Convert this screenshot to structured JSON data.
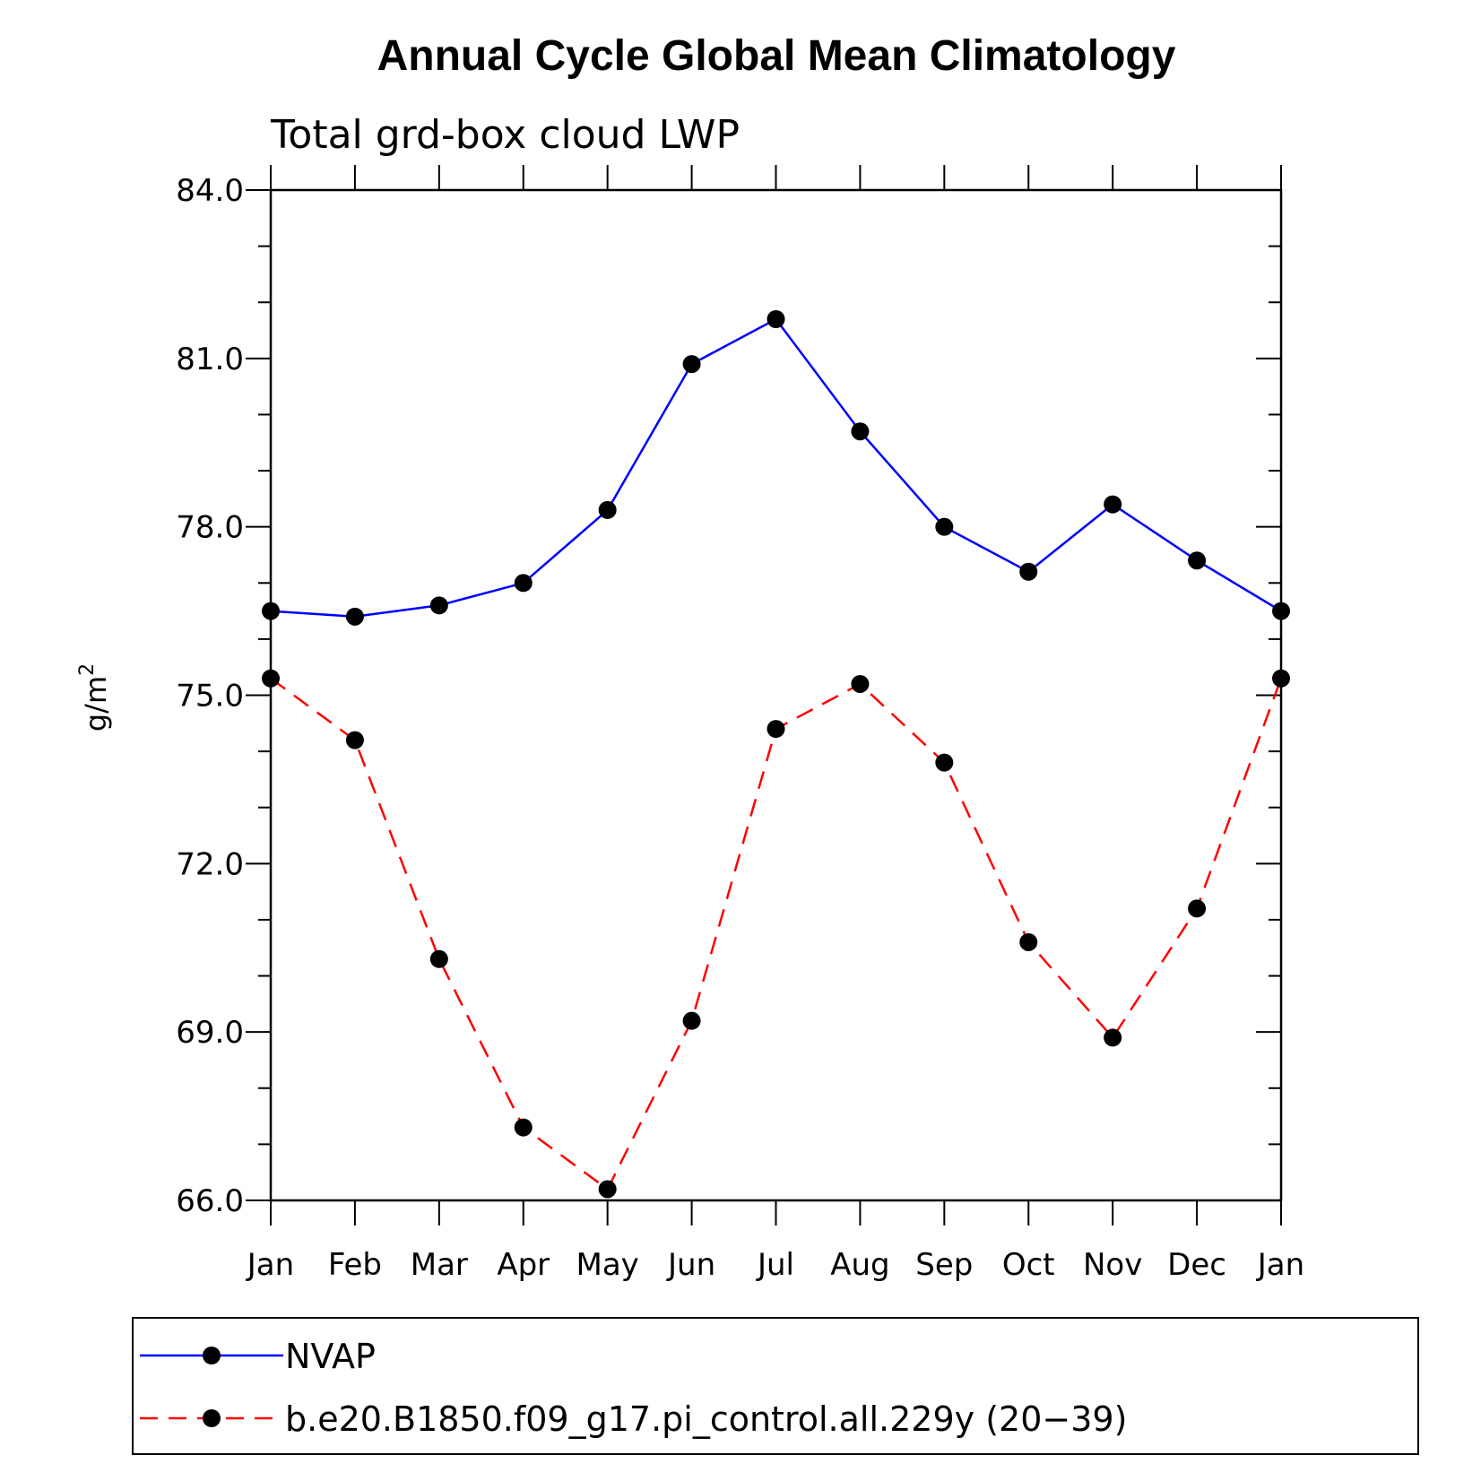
{
  "chart_data": {
    "type": "line",
    "title": "Annual Cycle Global Mean Climatology",
    "subtitle": "Total grd-box cloud LWP",
    "ylabel_base": "g/m",
    "ylabel_sup": "2",
    "categories": [
      "Jan",
      "Feb",
      "Mar",
      "Apr",
      "May",
      "Jun",
      "Jul",
      "Aug",
      "Sep",
      "Oct",
      "Nov",
      "Dec",
      "Jan"
    ],
    "ylim": [
      66.0,
      84.0
    ],
    "yticks": [
      "66.0",
      "69.0",
      "72.0",
      "75.0",
      "78.0",
      "81.0",
      "84.0"
    ],
    "series": [
      {
        "name": "NVAP",
        "color": "#0000ff",
        "dash": "solid",
        "values": [
          76.5,
          76.4,
          76.6,
          77.0,
          78.3,
          80.9,
          81.7,
          79.7,
          78.0,
          77.2,
          78.4,
          77.4,
          76.5
        ]
      },
      {
        "name": "b.e20.B1850.f09_g17.pi_control.all.229y (20−39)",
        "color": "#ff0000",
        "dash": "dashed",
        "values": [
          75.3,
          74.2,
          70.3,
          67.3,
          66.2,
          69.2,
          74.4,
          75.2,
          73.8,
          70.6,
          68.9,
          71.2,
          75.3
        ]
      }
    ]
  }
}
